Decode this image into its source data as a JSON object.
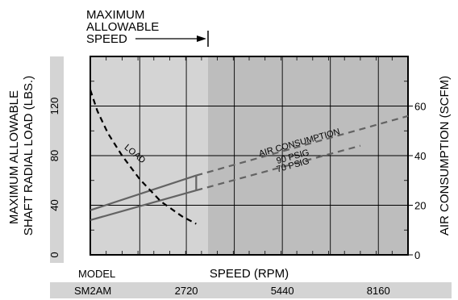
{
  "chart_data": {
    "type": "line",
    "title": "",
    "xlabel": "SPEED (RPM)",
    "ylabel_left": "MAXIMUM ALLOWABLE SHAFT RADIAL LOAD (LBS.)",
    "ylabel_right": "AIR CONSUMPTION (SCFM)",
    "x_range": [
      0,
      9000
    ],
    "x_ticks": [
      2720,
      5440,
      8160
    ],
    "y_left_range": [
      0,
      160
    ],
    "y_left_ticks": [
      0,
      40,
      80,
      120
    ],
    "y_right_range": [
      0,
      80
    ],
    "y_right_ticks": [
      0,
      20,
      40,
      60
    ],
    "model_label": "MODEL",
    "model_name": "SM2AM",
    "max_speed_annotation": [
      "MAXIMUM",
      "ALLOWABLE",
      "SPEED"
    ],
    "max_speed_rpm": 3000,
    "grid": true,
    "colors": {
      "light_region": "#d4d4d4",
      "dark_region": "#bdbdbd",
      "series": "#636363",
      "load": "#000000"
    },
    "series": [
      {
        "name": "AIR CONSUMPTION 90 PSIG",
        "axis": "right",
        "label": [
          "AIR CONSUMPTION",
          "90 PSIG"
        ],
        "x": [
          0,
          3000,
          9000
        ],
        "y": [
          18,
          32,
          56
        ]
      },
      {
        "name": "70 PSIG",
        "axis": "right",
        "label": [
          "70 PSIG"
        ],
        "x": [
          0,
          3000,
          7650
        ],
        "y": [
          14,
          26,
          44
        ]
      },
      {
        "name": "LOAD",
        "axis": "left",
        "label": [
          "LOAD"
        ],
        "x": [
          0,
          200,
          500,
          900,
          1400,
          2000,
          2600,
          3000
        ],
        "y": [
          133,
          116,
          98,
          80,
          61,
          43,
          31,
          25
        ]
      }
    ]
  }
}
